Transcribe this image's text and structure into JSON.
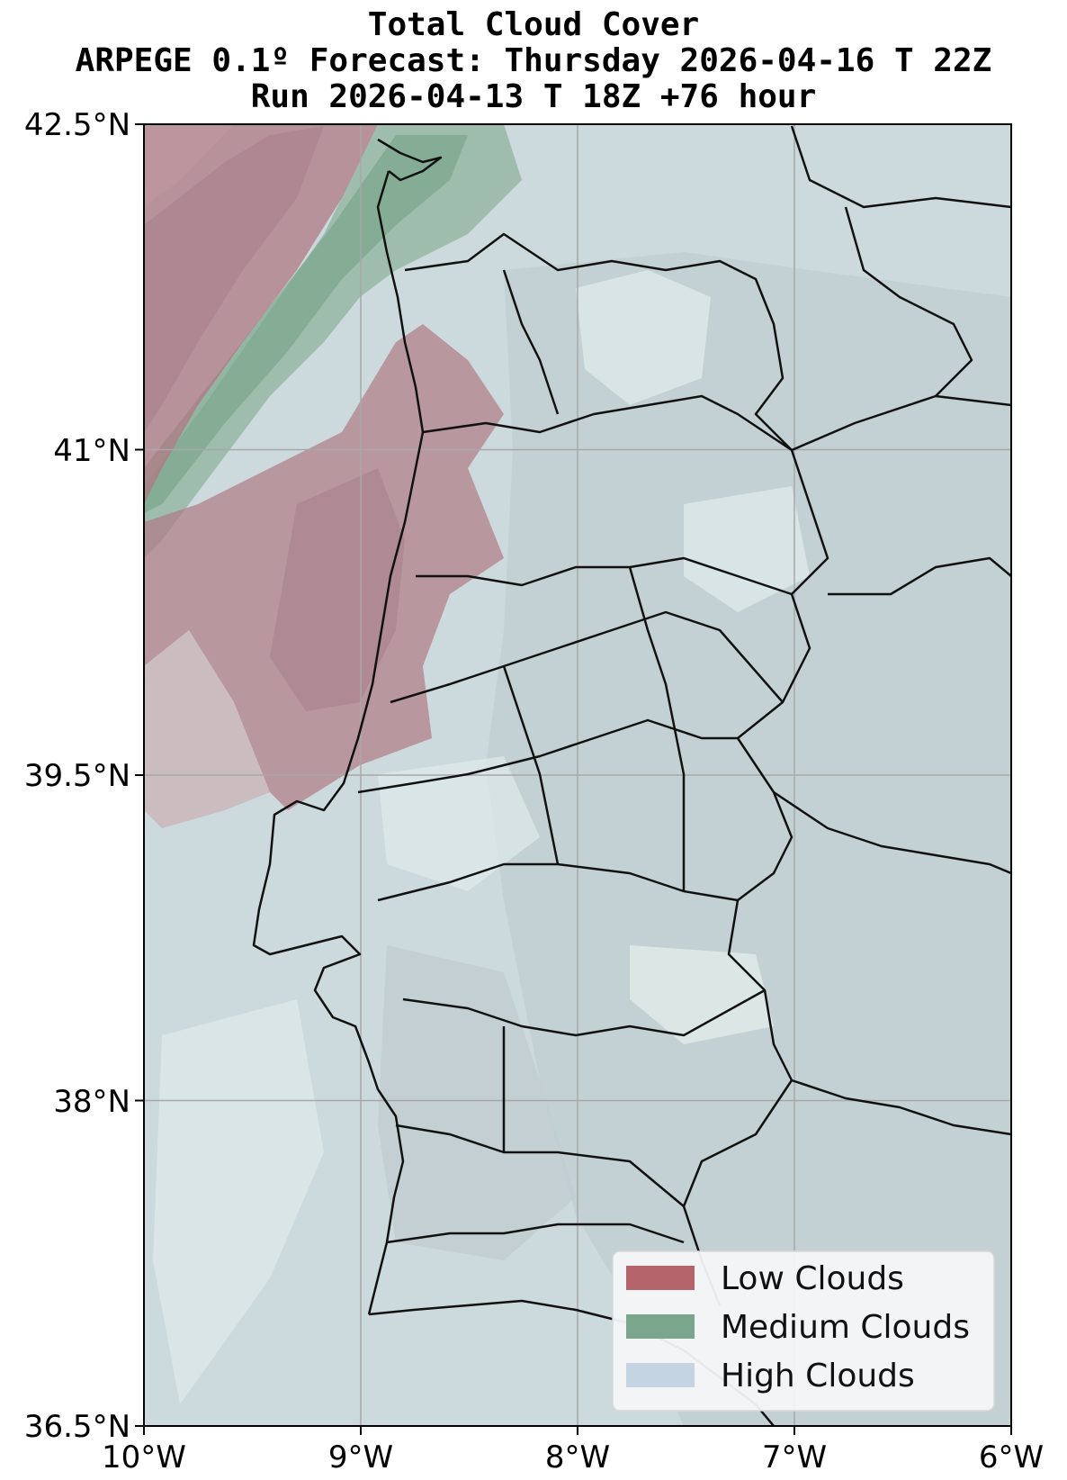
{
  "title": {
    "line1": "Total Cloud Cover",
    "line2": "ARPEGE 0.1º Forecast: Thursday 2026-04-16 T 22Z",
    "line3": "Run 2026-04-13 T 18Z +76 hour"
  },
  "axes": {
    "x_ticks": [
      "10°W",
      "9°W",
      "8°W",
      "7°W",
      "6°W"
    ],
    "y_ticks": [
      "42.5°N",
      "41°N",
      "39.5°N",
      "38°N",
      "36.5°N"
    ],
    "lon_range": [
      -10,
      -6
    ],
    "lat_range": [
      36.5,
      42.5
    ],
    "grid": true
  },
  "legend": {
    "placement": "bottom-right",
    "items": [
      {
        "label": "Low Clouds",
        "color": "#b5646c"
      },
      {
        "label": "Medium Clouds",
        "color": "#79a68c"
      },
      {
        "label": "High Clouds",
        "color": "#c4d4e3"
      }
    ]
  },
  "colors": {
    "background_cover": "#c9d6db",
    "low_clouds": "#b5646c",
    "medium_clouds": "#79a68c",
    "high_clouds": "#c4d4e3"
  }
}
